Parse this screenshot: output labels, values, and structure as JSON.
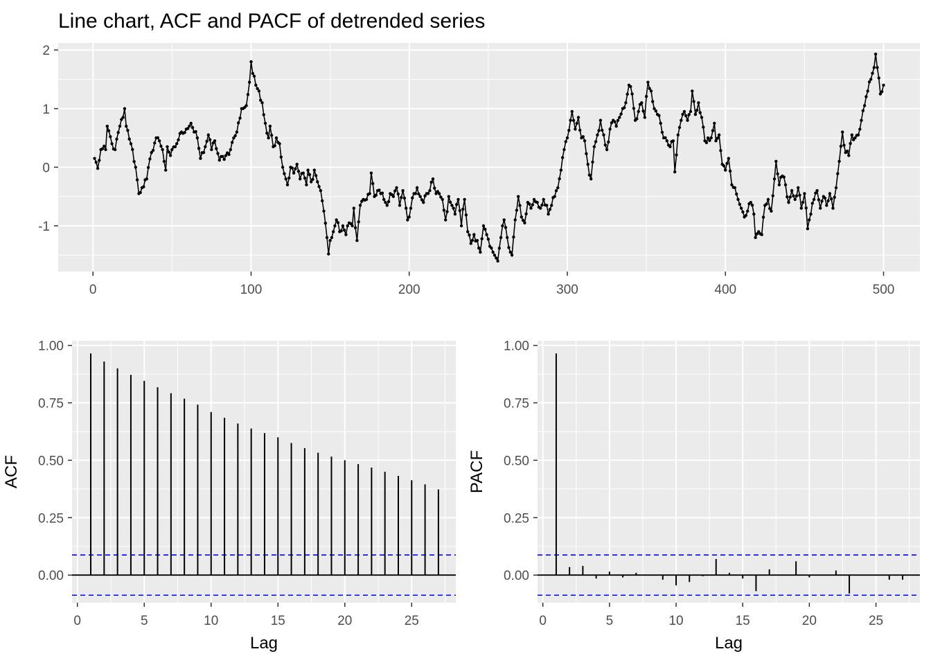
{
  "title": "Line chart, ACF and PACF of detrended series",
  "chart_data": [
    {
      "type": "line",
      "title": "Line chart, ACF and PACF of detrended series",
      "xlabel": "",
      "ylabel": "",
      "xlim": [
        -22,
        523
      ],
      "ylim": [
        -1.78,
        2.12
      ],
      "x_ticks": [
        0,
        100,
        200,
        300,
        400,
        500
      ],
      "y_ticks": [
        -1,
        0,
        1,
        2
      ],
      "markers": true,
      "n_points": 500,
      "anchors": [
        [
          1,
          0.15
        ],
        [
          3,
          -0.02
        ],
        [
          5,
          0.3
        ],
        [
          8,
          0.3
        ],
        [
          9,
          0.7
        ],
        [
          12,
          0.4
        ],
        [
          14,
          0.3
        ],
        [
          17,
          0.7
        ],
        [
          19,
          0.85
        ],
        [
          20,
          1.0
        ],
        [
          21,
          0.7
        ],
        [
          24,
          0.4
        ],
        [
          27,
          0.0
        ],
        [
          29,
          -0.45
        ],
        [
          31,
          -0.35
        ],
        [
          34,
          -0.2
        ],
        [
          37,
          0.25
        ],
        [
          40,
          0.5
        ],
        [
          42,
          0.45
        ],
        [
          44,
          0.3
        ],
        [
          46,
          -0.05
        ],
        [
          47,
          0.35
        ],
        [
          49,
          0.2
        ],
        [
          52,
          0.35
        ],
        [
          56,
          0.6
        ],
        [
          59,
          0.65
        ],
        [
          62,
          0.75
        ],
        [
          64,
          0.6
        ],
        [
          66,
          0.5
        ],
        [
          68,
          0.15
        ],
        [
          71,
          0.35
        ],
        [
          73,
          0.55
        ],
        [
          75,
          0.3
        ],
        [
          77,
          0.45
        ],
        [
          80,
          0.12
        ],
        [
          84,
          0.2
        ],
        [
          87,
          0.3
        ],
        [
          89,
          0.5
        ],
        [
          91,
          0.6
        ],
        [
          94,
          1.0
        ],
        [
          97,
          1.05
        ],
        [
          99,
          1.45
        ],
        [
          100,
          1.8
        ],
        [
          101,
          1.6
        ],
        [
          103,
          1.4
        ],
        [
          105,
          1.3
        ],
        [
          107,
          1.1
        ],
        [
          109,
          0.75
        ],
        [
          111,
          0.5
        ],
        [
          112,
          0.7
        ],
        [
          114,
          0.35
        ],
        [
          116,
          0.5
        ],
        [
          118,
          0.4
        ],
        [
          120,
          0.0
        ],
        [
          122,
          -0.2
        ],
        [
          123,
          -0.3
        ],
        [
          125,
          0.0
        ],
        [
          127,
          -0.1
        ],
        [
          129,
          0.05
        ],
        [
          131,
          -0.2
        ],
        [
          133,
          -0.1
        ],
        [
          135,
          -0.3
        ],
        [
          136,
          -0.05
        ],
        [
          138,
          -0.25
        ],
        [
          140,
          -0.05
        ],
        [
          142,
          -0.25
        ],
        [
          144,
          -0.4
        ],
        [
          146,
          -0.75
        ],
        [
          148,
          -1.2
        ],
        [
          149,
          -1.48
        ],
        [
          150,
          -1.25
        ],
        [
          152,
          -1.1
        ],
        [
          154,
          -0.9
        ],
        [
          156,
          -1.1
        ],
        [
          158,
          -1.0
        ],
        [
          160,
          -1.15
        ],
        [
          162,
          -0.95
        ],
        [
          164,
          -1.0
        ],
        [
          165,
          -0.7
        ],
        [
          167,
          -1.25
        ],
        [
          169,
          -0.65
        ],
        [
          171,
          -0.55
        ],
        [
          173,
          -0.55
        ],
        [
          175,
          -0.45
        ],
        [
          176,
          -0.1
        ],
        [
          178,
          -0.5
        ],
        [
          180,
          -0.4
        ],
        [
          182,
          -0.45
        ],
        [
          184,
          -0.55
        ],
        [
          186,
          -0.65
        ],
        [
          188,
          -0.45
        ],
        [
          190,
          -0.5
        ],
        [
          192,
          -0.35
        ],
        [
          194,
          -0.65
        ],
        [
          196,
          -0.4
        ],
        [
          198,
          -0.7
        ],
        [
          199,
          -0.9
        ],
        [
          201,
          -0.7
        ],
        [
          203,
          -0.45
        ],
        [
          205,
          -0.35
        ],
        [
          207,
          -0.5
        ],
        [
          209,
          -0.6
        ],
        [
          211,
          -0.45
        ],
        [
          213,
          -0.4
        ],
        [
          215,
          -0.2
        ],
        [
          217,
          -0.45
        ],
        [
          219,
          -0.45
        ],
        [
          221,
          -0.55
        ],
        [
          223,
          -0.9
        ],
        [
          225,
          -0.5
        ],
        [
          227,
          -0.65
        ],
        [
          229,
          -0.8
        ],
        [
          231,
          -0.55
        ],
        [
          233,
          -1.0
        ],
        [
          235,
          -0.55
        ],
        [
          237,
          -1.1
        ],
        [
          239,
          -1.3
        ],
        [
          241,
          -1.15
        ],
        [
          243,
          -1.25
        ],
        [
          245,
          -1.45
        ],
        [
          247,
          -1.0
        ],
        [
          249,
          -1.15
        ],
        [
          251,
          -1.35
        ],
        [
          253,
          -1.45
        ],
        [
          255,
          -1.55
        ],
        [
          256,
          -1.6
        ],
        [
          258,
          -1.2
        ],
        [
          260,
          -0.9
        ],
        [
          262,
          -1.2
        ],
        [
          264,
          -1.45
        ],
        [
          265,
          -1.5
        ],
        [
          267,
          -0.9
        ],
        [
          269,
          -0.5
        ],
        [
          271,
          -0.85
        ],
        [
          273,
          -0.95
        ],
        [
          275,
          -0.6
        ],
        [
          277,
          -0.7
        ],
        [
          279,
          -0.55
        ],
        [
          281,
          -0.6
        ],
        [
          283,
          -0.7
        ],
        [
          285,
          -0.55
        ],
        [
          287,
          -0.65
        ],
        [
          288,
          -0.8
        ],
        [
          290,
          -0.65
        ],
        [
          292,
          -0.5
        ],
        [
          294,
          -0.35
        ],
        [
          296,
          -0.05
        ],
        [
          298,
          0.3
        ],
        [
          300,
          0.5
        ],
        [
          302,
          0.8
        ],
        [
          303,
          0.95
        ],
        [
          305,
          0.65
        ],
        [
          307,
          0.85
        ],
        [
          309,
          0.5
        ],
        [
          311,
          0.45
        ],
        [
          313,
          0.05
        ],
        [
          315,
          -0.2
        ],
        [
          317,
          0.35
        ],
        [
          319,
          0.55
        ],
        [
          321,
          0.8
        ],
        [
          323,
          0.55
        ],
        [
          325,
          0.3
        ],
        [
          327,
          0.65
        ],
        [
          329,
          0.8
        ],
        [
          331,
          0.7
        ],
        [
          333,
          0.85
        ],
        [
          335,
          1.0
        ],
        [
          337,
          1.1
        ],
        [
          339,
          1.4
        ],
        [
          341,
          1.25
        ],
        [
          343,
          0.8
        ],
        [
          345,
          0.95
        ],
        [
          347,
          1.1
        ],
        [
          349,
          0.85
        ],
        [
          351,
          1.45
        ],
        [
          353,
          1.3
        ],
        [
          355,
          1.0
        ],
        [
          357,
          0.9
        ],
        [
          359,
          0.75
        ],
        [
          361,
          0.5
        ],
        [
          363,
          0.45
        ],
        [
          365,
          0.35
        ],
        [
          367,
          0.45
        ],
        [
          368,
          -0.08
        ],
        [
          370,
          0.55
        ],
        [
          372,
          0.8
        ],
        [
          374,
          0.95
        ],
        [
          376,
          0.8
        ],
        [
          378,
          0.95
        ],
        [
          379,
          1.3
        ],
        [
          381,
          0.9
        ],
        [
          383,
          1.1
        ],
        [
          385,
          0.85
        ],
        [
          387,
          0.45
        ],
        [
          389,
          0.5
        ],
        [
          391,
          0.5
        ],
        [
          393,
          0.75
        ],
        [
          394,
          0.45
        ],
        [
          396,
          0.55
        ],
        [
          398,
          0.05
        ],
        [
          400,
          -0.05
        ],
        [
          402,
          0.15
        ],
        [
          404,
          -0.3
        ],
        [
          406,
          -0.35
        ],
        [
          408,
          -0.55
        ],
        [
          410,
          -0.7
        ],
        [
          412,
          -0.85
        ],
        [
          414,
          -0.75
        ],
        [
          416,
          -0.6
        ],
        [
          418,
          -0.8
        ],
        [
          419,
          -1.2
        ],
        [
          421,
          -1.1
        ],
        [
          423,
          -1.15
        ],
        [
          425,
          -0.65
        ],
        [
          427,
          -0.55
        ],
        [
          429,
          -0.75
        ],
        [
          431,
          -0.2
        ],
        [
          432,
          0.1
        ],
        [
          434,
          -0.3
        ],
        [
          436,
          -0.15
        ],
        [
          438,
          -0.3
        ],
        [
          440,
          -0.6
        ],
        [
          442,
          -0.4
        ],
        [
          444,
          -0.55
        ],
        [
          446,
          -0.35
        ],
        [
          448,
          -0.7
        ],
        [
          450,
          -0.45
        ],
        [
          452,
          -1.05
        ],
        [
          454,
          -0.8
        ],
        [
          456,
          -0.55
        ],
        [
          458,
          -0.4
        ],
        [
          460,
          -0.7
        ],
        [
          462,
          -0.5
        ],
        [
          464,
          -0.65
        ],
        [
          466,
          -0.45
        ],
        [
          468,
          -0.7
        ],
        [
          470,
          -0.35
        ],
        [
          472,
          0.1
        ],
        [
          474,
          0.6
        ],
        [
          476,
          0.25
        ],
        [
          478,
          0.2
        ],
        [
          480,
          0.55
        ],
        [
          482,
          0.5
        ],
        [
          484,
          0.55
        ],
        [
          486,
          0.8
        ],
        [
          488,
          1.05
        ],
        [
          490,
          1.3
        ],
        [
          492,
          1.5
        ],
        [
          494,
          1.7
        ],
        [
          495,
          1.93
        ],
        [
          496,
          1.7
        ],
        [
          498,
          1.25
        ],
        [
          500,
          1.4
        ]
      ]
    },
    {
      "type": "bar",
      "name": "ACF",
      "xlabel": "Lag",
      "ylabel": "ACF",
      "xlim": [
        -0.4,
        28.3
      ],
      "ylim": [
        -0.12,
        1.02
      ],
      "x_ticks": [
        0,
        5,
        10,
        15,
        20,
        25
      ],
      "y_ticks": [
        0.0,
        0.25,
        0.5,
        0.75,
        1.0
      ],
      "y_tick_labels": [
        "0.00",
        "0.25",
        "0.50",
        "0.75",
        "1.00"
      ],
      "confidence_bound": 0.0876,
      "lags": [
        1,
        2,
        3,
        4,
        5,
        6,
        7,
        8,
        9,
        10,
        11,
        12,
        13,
        14,
        15,
        16,
        17,
        18,
        19,
        20,
        21,
        22,
        23,
        24,
        25,
        26,
        27
      ],
      "values": [
        0.965,
        0.93,
        0.9,
        0.872,
        0.846,
        0.818,
        0.792,
        0.768,
        0.742,
        0.71,
        0.685,
        0.66,
        0.638,
        0.618,
        0.6,
        0.575,
        0.553,
        0.533,
        0.516,
        0.5,
        0.483,
        0.468,
        0.45,
        0.432,
        0.413,
        0.395,
        0.373
      ]
    },
    {
      "type": "bar",
      "name": "PACF",
      "xlabel": "Lag",
      "ylabel": "PACF",
      "xlim": [
        -0.4,
        28.3
      ],
      "ylim": [
        -0.12,
        1.02
      ],
      "x_ticks": [
        0,
        5,
        10,
        15,
        20,
        25
      ],
      "y_ticks": [
        0.0,
        0.25,
        0.5,
        0.75,
        1.0
      ],
      "y_tick_labels": [
        "0.00",
        "0.25",
        "0.50",
        "0.75",
        "1.00"
      ],
      "confidence_bound": 0.0876,
      "lags": [
        1,
        2,
        3,
        4,
        5,
        6,
        7,
        8,
        9,
        10,
        11,
        12,
        13,
        14,
        15,
        16,
        17,
        18,
        19,
        20,
        21,
        22,
        23,
        24,
        25,
        26,
        27
      ],
      "values": [
        0.965,
        0.035,
        0.04,
        -0.015,
        0.015,
        -0.01,
        0.01,
        0.0,
        -0.02,
        -0.045,
        -0.03,
        -0.005,
        0.07,
        0.01,
        -0.015,
        -0.07,
        0.025,
        0.0,
        0.06,
        -0.01,
        0.0,
        0.02,
        -0.08,
        0.0,
        0.0,
        -0.02,
        -0.02
      ]
    }
  ],
  "colors": {
    "panel_background": "#ebebeb",
    "grid": "#ffffff",
    "series": "#000000",
    "confidence_line": "#0000ff",
    "tick_text": "#4d4d4d"
  }
}
